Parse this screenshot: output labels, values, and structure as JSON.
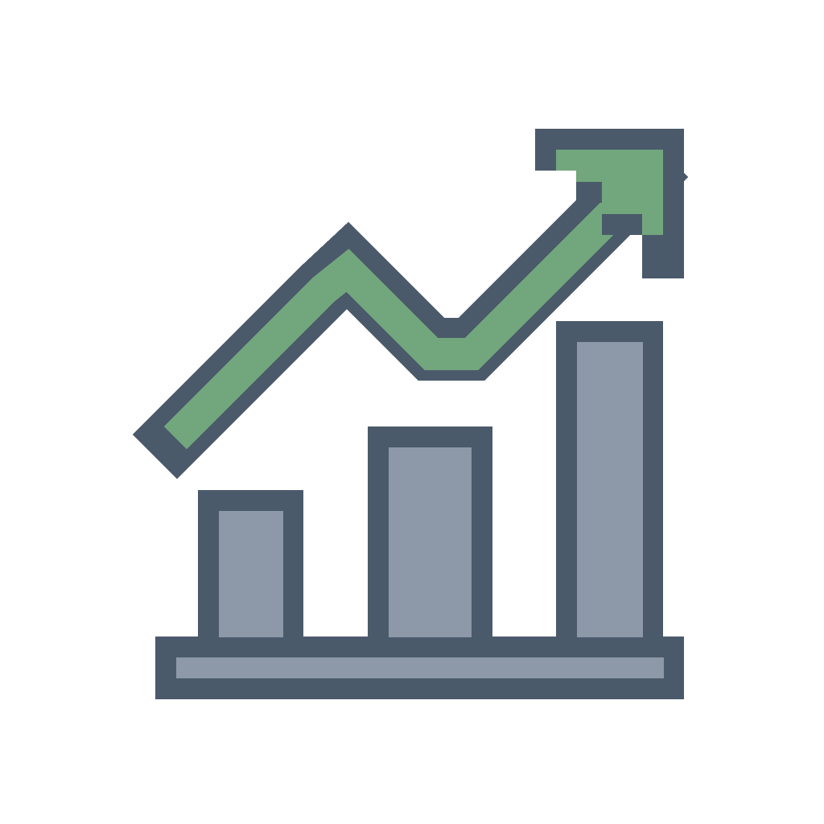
{
  "icon": {
    "name": "pixel-bar-chart-trend-up-icon",
    "colors": {
      "outline": "#4b5a6b",
      "bar_fill": "#8d99a8",
      "arrow_fill": "#72a77d",
      "background": "#ffffff"
    },
    "bars": [
      {
        "level": 0.3
      },
      {
        "level": 0.55
      },
      {
        "level": 0.85
      }
    ],
    "trend": "up"
  }
}
